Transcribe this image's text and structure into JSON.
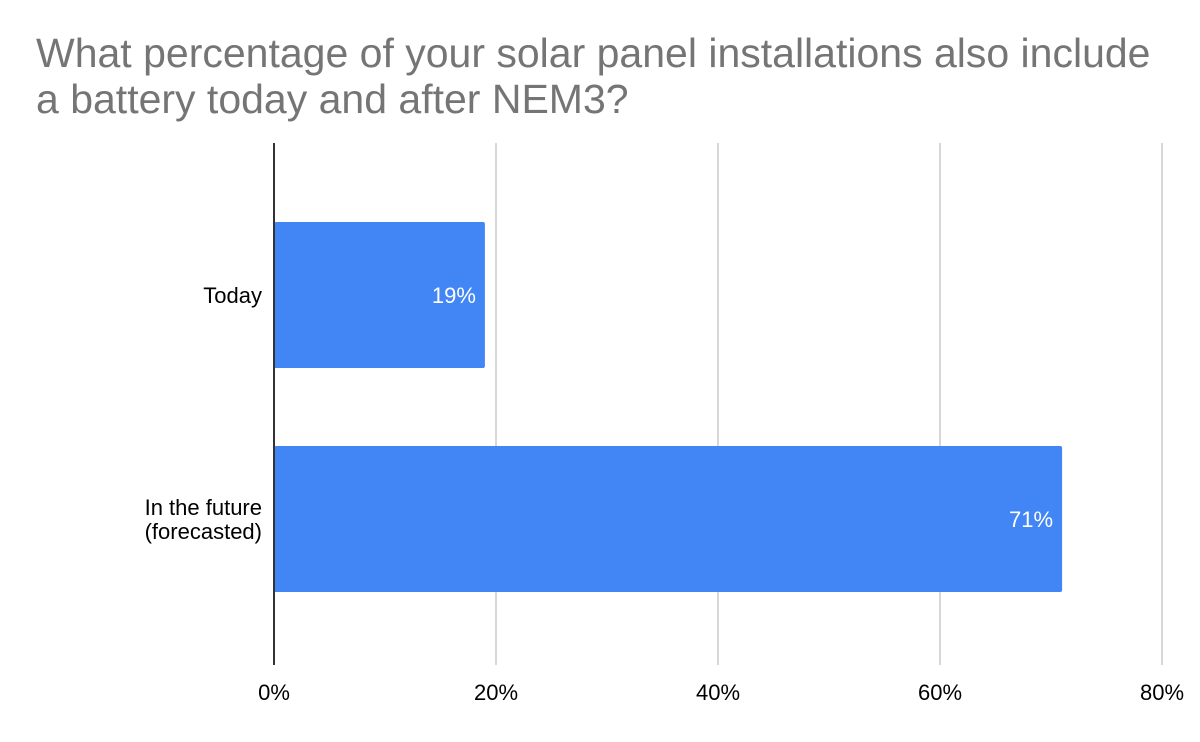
{
  "chart_data": {
    "type": "bar",
    "orientation": "horizontal",
    "title": "What percentage of your solar panel installations also include a battery today and after NEM3?",
    "categories": [
      "Today",
      "In the future (forecasted)"
    ],
    "category_lines": [
      [
        "Today"
      ],
      [
        "In the future",
        "(forecasted)"
      ]
    ],
    "values": [
      19,
      71
    ],
    "data_labels": [
      "19%",
      "71%"
    ],
    "xlim": [
      0,
      80
    ],
    "x_ticks": [
      0,
      20,
      40,
      60,
      80
    ],
    "x_tick_labels": [
      "0%",
      "20%",
      "40%",
      "60%",
      "80%"
    ],
    "xlabel": "",
    "ylabel": "",
    "grid": true,
    "legend": "none",
    "bar_color": "#4285f4",
    "grid_color": "#cccccc",
    "axis_color": "#333333"
  }
}
